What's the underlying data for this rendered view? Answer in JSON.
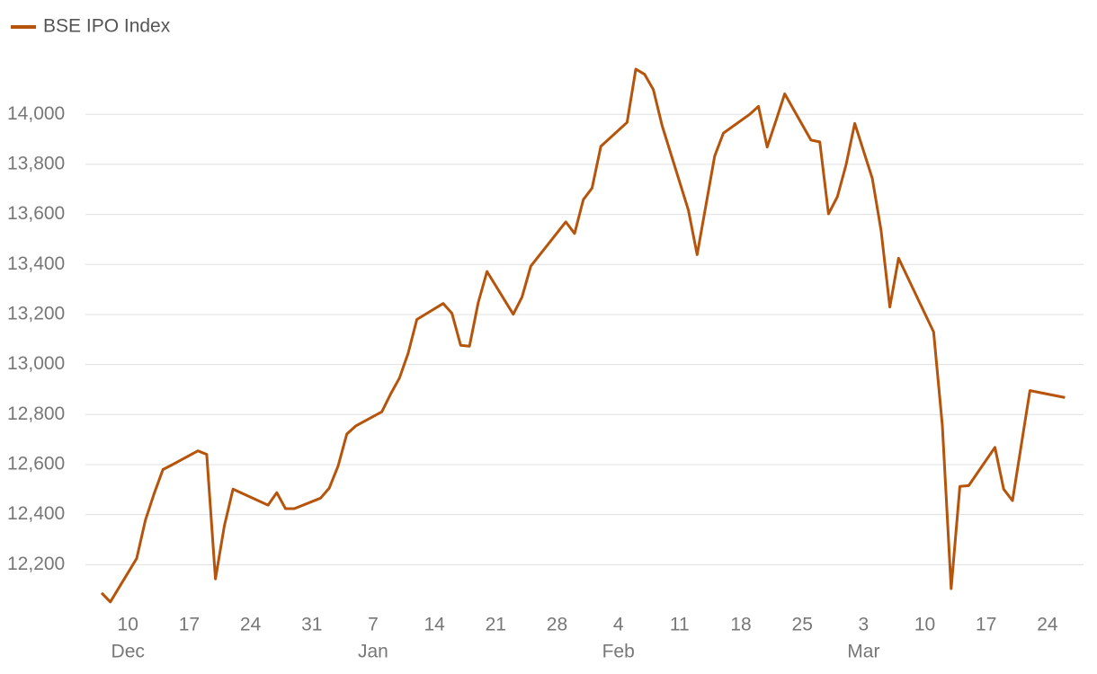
{
  "chart_data": {
    "type": "line",
    "x": [
      "Dec 7",
      "Dec 8",
      "Dec 11",
      "Dec 12",
      "Dec 13",
      "Dec 14",
      "Dec 15",
      "Dec 18",
      "Dec 19",
      "Dec 20",
      "Dec 21",
      "Dec 22",
      "Dec 26",
      "Dec 27",
      "Dec 28",
      "Dec 29",
      "Jan 1",
      "Jan 2",
      "Jan 3",
      "Jan 4",
      "Jan 5",
      "Jan 8",
      "Jan 9",
      "Jan 10",
      "Jan 11",
      "Jan 12",
      "Jan 15",
      "Jan 16",
      "Jan 17",
      "Jan 18",
      "Jan 19",
      "Jan 20",
      "Jan 23",
      "Jan 24",
      "Jan 25",
      "Jan 29",
      "Jan 30",
      "Jan 31",
      "Feb 1",
      "Feb 2",
      "Feb 5",
      "Feb 6",
      "Feb 7",
      "Feb 8",
      "Feb 9",
      "Feb 12",
      "Feb 13",
      "Feb 15",
      "Feb 16",
      "Feb 19",
      "Feb 20",
      "Feb 21",
      "Feb 22",
      "Feb 23",
      "Feb 26",
      "Feb 27",
      "Feb 28",
      "Feb 29",
      "Mar 1",
      "Mar 2",
      "Mar 4",
      "Mar 5",
      "Mar 6",
      "Mar 7",
      "Mar 11",
      "Mar 12",
      "Mar 13",
      "Mar 14",
      "Mar 15",
      "Mar 18",
      "Mar 19",
      "Mar 20",
      "Mar 22",
      "Mar 26"
    ],
    "series": [
      {
        "name": "BSE IPO Index",
        "color": "#b5540a",
        "values": [
          12087,
          12051,
          12225,
          12378,
          12484,
          12580,
          12598,
          12655,
          12641,
          12143,
          12353,
          12502,
          12438,
          12488,
          12424,
          12424,
          12466,
          12506,
          12594,
          12722,
          12754,
          12811,
          12882,
          12946,
          13045,
          13180,
          13244,
          13205,
          13077,
          13073,
          13247,
          13372,
          13201,
          13269,
          13393,
          13570,
          13524,
          13659,
          13705,
          13872,
          13968,
          14181,
          14160,
          14099,
          13954,
          13617,
          13439,
          13833,
          13925,
          14000,
          14032,
          13869,
          13975,
          14082,
          13897,
          13890,
          13602,
          13670,
          13798,
          13964,
          13744,
          13535,
          13230,
          13425,
          13130,
          12757,
          12104,
          12513,
          12516,
          12669,
          12502,
          12456,
          12896,
          12868
        ]
      }
    ],
    "xticks": [
      {
        "value": "Dec 10",
        "label": "10"
      },
      {
        "value": "Dec 17",
        "label": "17"
      },
      {
        "value": "Dec 24",
        "label": "24"
      },
      {
        "value": "Dec 31",
        "label": "31"
      },
      {
        "value": "Jan 7",
        "label": "7"
      },
      {
        "value": "Jan 14",
        "label": "14"
      },
      {
        "value": "Jan 21",
        "label": "21"
      },
      {
        "value": "Jan 28",
        "label": "28"
      },
      {
        "value": "Feb 4",
        "label": "4"
      },
      {
        "value": "Feb 11",
        "label": "11"
      },
      {
        "value": "Feb 18",
        "label": "18"
      },
      {
        "value": "Feb 25",
        "label": "25"
      },
      {
        "value": "Mar 3",
        "label": "3"
      },
      {
        "value": "Mar 10",
        "label": "10"
      },
      {
        "value": "Mar 17",
        "label": "17"
      },
      {
        "value": "Mar 24",
        "label": "24"
      }
    ],
    "month_labels": [
      {
        "value": "Dec 10",
        "label": "Dec"
      },
      {
        "value": "Jan 7",
        "label": "Jan"
      },
      {
        "value": "Feb 4",
        "label": "Feb"
      },
      {
        "value": "Mar 3",
        "label": "Mar"
      }
    ],
    "ylim": [
      12000,
      14220
    ],
    "yticks": [
      {
        "value": 12200,
        "label": "12,200"
      },
      {
        "value": 12400,
        "label": "12,400"
      },
      {
        "value": 12600,
        "label": "12,600"
      },
      {
        "value": 12800,
        "label": "12,800"
      },
      {
        "value": 13000,
        "label": "13,000"
      },
      {
        "value": 13200,
        "label": "13,200"
      },
      {
        "value": 13400,
        "label": "13,400"
      },
      {
        "value": 13600,
        "label": "13,600"
      },
      {
        "value": 13800,
        "label": "13,800"
      },
      {
        "value": 14000,
        "label": "14,000"
      }
    ],
    "grid": true,
    "legend": "top-left"
  }
}
